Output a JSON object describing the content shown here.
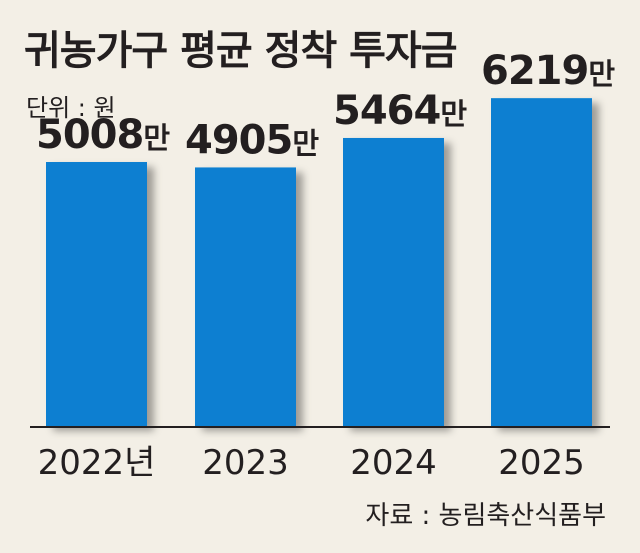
{
  "title": "귀농가구 평균 정착 투자금",
  "unit_label": "단위 : 원",
  "source": "자료 : 농림축산식품부",
  "colors": {
    "bar": "#0a7fd1",
    "background": "#f3efe6",
    "text": "#231f20"
  },
  "chart_data": {
    "type": "bar",
    "categories": [
      "2022년",
      "2023",
      "2024",
      "2025"
    ],
    "values": [
      5008,
      4905,
      5464,
      6219
    ],
    "value_labels": [
      "5008만",
      "4905만",
      "5464만",
      "6219만"
    ],
    "ylim": [
      0,
      7000
    ],
    "grid": false,
    "legend": "none"
  }
}
